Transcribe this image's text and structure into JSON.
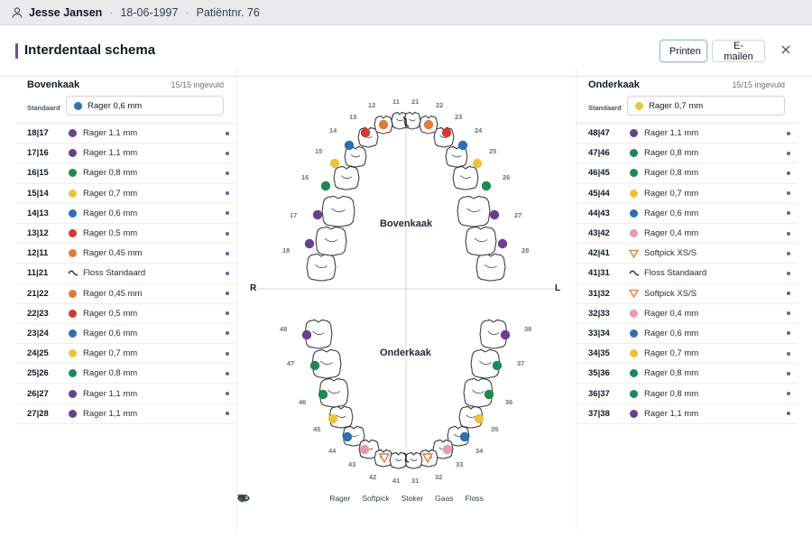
{
  "patient": {
    "name": "Jesse Jansen",
    "dob": "18-06-1997",
    "patient_no": "Patiëntnr. 76"
  },
  "title": "Interdentaal schema",
  "buttons": {
    "print": "Printen",
    "email": "E-mailen"
  },
  "colors": {
    "purple": "#6b3f8f",
    "green": "#1f8a50",
    "yellow": "#ecc33d",
    "blue": "#2e6fb0",
    "red": "#d03a33",
    "orange": "#e07c3a",
    "pink": "#e899ad",
    "accent": "#6b4f9c"
  },
  "upper": {
    "title": "Bovenkaak",
    "count": "15/15 ingevuld",
    "std_label": "Standaard",
    "std_value": "Rager 0,6 mm",
    "std_color": "#2e6fb0",
    "rows": [
      {
        "pair": "18|17",
        "kind": "dot",
        "color": "#6b3f8f",
        "label": "Rager 1,1 mm"
      },
      {
        "pair": "17|16",
        "kind": "dot",
        "color": "#6b3f8f",
        "label": "Rager 1,1 mm"
      },
      {
        "pair": "16|15",
        "kind": "dot",
        "color": "#1f8a50",
        "label": "Rager 0,8 mm"
      },
      {
        "pair": "15|14",
        "kind": "dot",
        "color": "#ecc33d",
        "label": "Rager 0,7 mm"
      },
      {
        "pair": "14|13",
        "kind": "dot",
        "color": "#2e6fb0",
        "label": "Rager 0,6 mm"
      },
      {
        "pair": "13|12",
        "kind": "dot",
        "color": "#d03a33",
        "label": "Rager 0,5 mm"
      },
      {
        "pair": "12|11",
        "kind": "dot",
        "color": "#e07c3a",
        "label": "Rager 0,45 mm"
      },
      {
        "pair": "11|21",
        "kind": "floss",
        "color": "#1f2937",
        "label": "Floss Standaard"
      },
      {
        "pair": "21|22",
        "kind": "dot",
        "color": "#e07c3a",
        "label": "Rager 0,45 mm"
      },
      {
        "pair": "22|23",
        "kind": "dot",
        "color": "#d03a33",
        "label": "Rager 0,5 mm"
      },
      {
        "pair": "23|24",
        "kind": "dot",
        "color": "#2e6fb0",
        "label": "Rager 0,6 mm"
      },
      {
        "pair": "24|25",
        "kind": "dot",
        "color": "#ecc33d",
        "label": "Rager 0,7 mm"
      },
      {
        "pair": "25|26",
        "kind": "dot",
        "color": "#1f8a50",
        "label": "Rager 0,8 mm"
      },
      {
        "pair": "26|27",
        "kind": "dot",
        "color": "#6b3f8f",
        "label": "Rager 1,1 mm"
      },
      {
        "pair": "27|28",
        "kind": "dot",
        "color": "#6b3f8f",
        "label": "Rager 1,1 mm"
      }
    ]
  },
  "lower": {
    "title": "Onderkaak",
    "count": "15/15 ingevuld",
    "std_label": "Standaard",
    "std_value": "Rager 0,7 mm",
    "std_color": "#ecc33d",
    "rows": [
      {
        "pair": "48|47",
        "kind": "dot",
        "color": "#6b3f8f",
        "label": "Rager 1,1 mm"
      },
      {
        "pair": "47|46",
        "kind": "dot",
        "color": "#1f8a50",
        "label": "Rager 0,8 mm"
      },
      {
        "pair": "46|45",
        "kind": "dot",
        "color": "#1f8a50",
        "label": "Rager 0,8 mm"
      },
      {
        "pair": "45|44",
        "kind": "dot",
        "color": "#ecc33d",
        "label": "Rager 0,7 mm"
      },
      {
        "pair": "44|43",
        "kind": "dot",
        "color": "#2e6fb0",
        "label": "Rager 0,6 mm"
      },
      {
        "pair": "43|42",
        "kind": "dot",
        "color": "#e899ad",
        "label": "Rager 0,4 mm"
      },
      {
        "pair": "42|41",
        "kind": "softpick",
        "color": "#e07c3a",
        "label": "Softpick XS/S"
      },
      {
        "pair": "41|31",
        "kind": "floss",
        "color": "#1f2937",
        "label": "Floss Standaard"
      },
      {
        "pair": "31|32",
        "kind": "softpick",
        "color": "#e07c3a",
        "label": "Softpick XS/S"
      },
      {
        "pair": "32|33",
        "kind": "dot",
        "color": "#e899ad",
        "label": "Rager 0,4 mm"
      },
      {
        "pair": "33|34",
        "kind": "dot",
        "color": "#2e6fb0",
        "label": "Rager 0,6 mm"
      },
      {
        "pair": "34|35",
        "kind": "dot",
        "color": "#ecc33d",
        "label": "Rager 0,7 mm"
      },
      {
        "pair": "35|36",
        "kind": "dot",
        "color": "#1f8a50",
        "label": "Rager 0,8 mm"
      },
      {
        "pair": "36|37",
        "kind": "dot",
        "color": "#1f8a50",
        "label": "Rager 0,8 mm"
      },
      {
        "pair": "37|38",
        "kind": "dot",
        "color": "#6b3f8f",
        "label": "Rager 1,1 mm"
      }
    ]
  },
  "chart": {
    "upper_label": "Bovenkaak",
    "lower_label": "Onderkaak",
    "right_label": "R",
    "left_label": "L",
    "upper_teeth": [
      "18",
      "17",
      "16",
      "15",
      "14",
      "13",
      "12",
      "11",
      "21",
      "22",
      "23",
      "24",
      "25",
      "26",
      "27",
      "28"
    ],
    "lower_teeth": [
      "48",
      "47",
      "46",
      "45",
      "44",
      "43",
      "42",
      "41",
      "31",
      "32",
      "33",
      "34",
      "35",
      "36",
      "37",
      "38"
    ]
  },
  "legend": [
    {
      "icon": "rager-icon",
      "label": "Rager"
    },
    {
      "icon": "softpick-icon",
      "label": "Softpick"
    },
    {
      "icon": "stoker-icon",
      "label": "Stoker"
    },
    {
      "icon": "gaas-icon",
      "label": "Gaas"
    },
    {
      "icon": "floss-icon",
      "label": "Floss"
    }
  ]
}
